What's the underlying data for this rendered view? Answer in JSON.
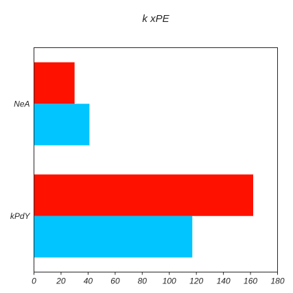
{
  "chart_data": {
    "type": "bar",
    "orientation": "horizontal",
    "title": "k xPE",
    "xlabel": "",
    "ylabel": "",
    "categories": [
      "NeA",
      "kPdY"
    ],
    "series": [
      {
        "color": "#00c5ff",
        "values": [
          41,
          117
        ]
      },
      {
        "color": "#ff1100",
        "values": [
          30,
          162
        ]
      }
    ],
    "xlim": [
      0,
      180
    ],
    "xticks": [
      0,
      20,
      40,
      60,
      80,
      100,
      120,
      140,
      160,
      180
    ],
    "grid": false,
    "legend": "none"
  }
}
